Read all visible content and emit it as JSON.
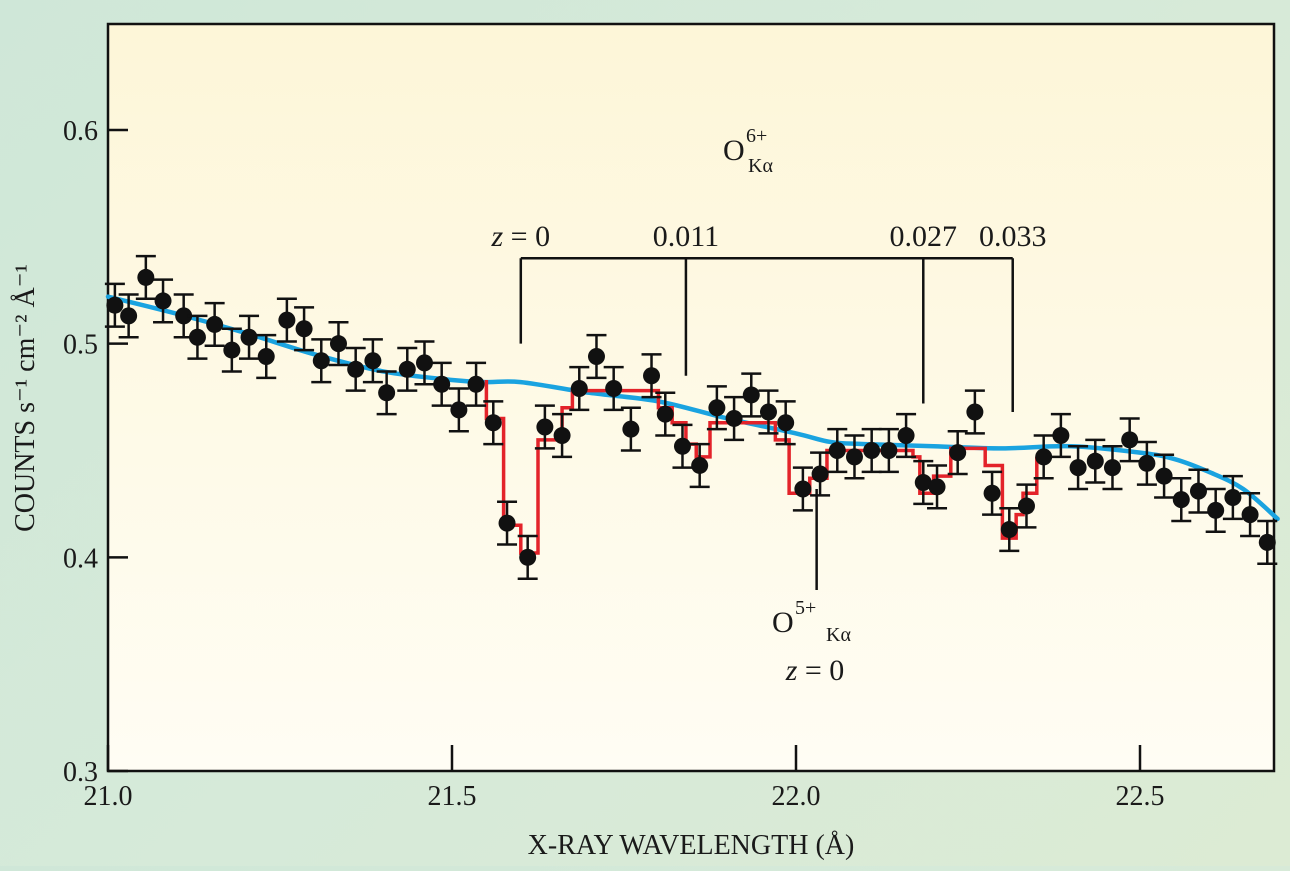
{
  "chart_data": {
    "type": "scatter",
    "xlabel": "X-RAY WAVELENGTH (Å)",
    "ylabel": "COUNTS s⁻¹ cm⁻² Å⁻¹",
    "xlim": [
      21.0,
      22.7
    ],
    "ylim": [
      0.3,
      0.65
    ],
    "x_ticks": [
      21.0,
      21.5,
      22.0,
      22.5
    ],
    "x_tick_labels": [
      "21.0",
      "21.5",
      "22.0",
      "22.5"
    ],
    "y_ticks": [
      0.3,
      0.4,
      0.5,
      0.6
    ],
    "y_tick_labels": [
      "0.3",
      "0.4",
      "0.5",
      "0.6"
    ],
    "colors": {
      "data": "#111111",
      "model_fit": "#e3232a",
      "continuum": "#1aa3e0"
    },
    "series": [
      {
        "name": "data",
        "points": [
          [
            21.01,
            0.518
          ],
          [
            21.03,
            0.513
          ],
          [
            21.055,
            0.531
          ],
          [
            21.08,
            0.52
          ],
          [
            21.11,
            0.513
          ],
          [
            21.13,
            0.503
          ],
          [
            21.155,
            0.509
          ],
          [
            21.18,
            0.497
          ],
          [
            21.205,
            0.503
          ],
          [
            21.23,
            0.494
          ],
          [
            21.26,
            0.511
          ],
          [
            21.285,
            0.507
          ],
          [
            21.31,
            0.492
          ],
          [
            21.335,
            0.5
          ],
          [
            21.36,
            0.488
          ],
          [
            21.385,
            0.492
          ],
          [
            21.405,
            0.477
          ],
          [
            21.435,
            0.488
          ],
          [
            21.46,
            0.491
          ],
          [
            21.485,
            0.481
          ],
          [
            21.51,
            0.469
          ],
          [
            21.535,
            0.481
          ],
          [
            21.56,
            0.463
          ],
          [
            21.58,
            0.416
          ],
          [
            21.61,
            0.4
          ],
          [
            21.635,
            0.461
          ],
          [
            21.66,
            0.457
          ],
          [
            21.685,
            0.479
          ],
          [
            21.71,
            0.494
          ],
          [
            21.735,
            0.479
          ],
          [
            21.76,
            0.46
          ],
          [
            21.79,
            0.485
          ],
          [
            21.81,
            0.467
          ],
          [
            21.835,
            0.452
          ],
          [
            21.86,
            0.443
          ],
          [
            21.885,
            0.47
          ],
          [
            21.91,
            0.465
          ],
          [
            21.935,
            0.476
          ],
          [
            21.96,
            0.468
          ],
          [
            21.985,
            0.463
          ],
          [
            22.01,
            0.432
          ],
          [
            22.035,
            0.439
          ],
          [
            22.06,
            0.45
          ],
          [
            22.085,
            0.447
          ],
          [
            22.11,
            0.45
          ],
          [
            22.135,
            0.45
          ],
          [
            22.16,
            0.457
          ],
          [
            22.185,
            0.435
          ],
          [
            22.205,
            0.433
          ],
          [
            22.235,
            0.449
          ],
          [
            22.26,
            0.468
          ],
          [
            22.285,
            0.43
          ],
          [
            22.31,
            0.413
          ],
          [
            22.335,
            0.424
          ],
          [
            22.36,
            0.447
          ],
          [
            22.385,
            0.457
          ],
          [
            22.41,
            0.442
          ],
          [
            22.435,
            0.445
          ],
          [
            22.46,
            0.442
          ],
          [
            22.485,
            0.455
          ],
          [
            22.51,
            0.444
          ],
          [
            22.535,
            0.438
          ],
          [
            22.56,
            0.427
          ],
          [
            22.585,
            0.431
          ],
          [
            22.61,
            0.422
          ],
          [
            22.635,
            0.428
          ],
          [
            22.66,
            0.42
          ],
          [
            22.685,
            0.407
          ]
        ],
        "error": 0.01
      },
      {
        "name": "model_fit",
        "type": "step",
        "points": [
          [
            21.55,
            0.483
          ],
          [
            21.55,
            0.465
          ],
          [
            21.575,
            0.465
          ],
          [
            21.575,
            0.415
          ],
          [
            21.6,
            0.415
          ],
          [
            21.6,
            0.402
          ],
          [
            21.625,
            0.402
          ],
          [
            21.625,
            0.455
          ],
          [
            21.66,
            0.455
          ],
          [
            21.66,
            0.47
          ],
          [
            21.675,
            0.47
          ],
          [
            21.675,
            0.478
          ],
          [
            21.7,
            0.478
          ],
          [
            21.8,
            0.478
          ],
          [
            21.8,
            0.47
          ],
          [
            21.82,
            0.47
          ],
          [
            21.82,
            0.463
          ],
          [
            21.84,
            0.463
          ],
          [
            21.84,
            0.453
          ],
          [
            21.855,
            0.453
          ],
          [
            21.855,
            0.447
          ],
          [
            21.875,
            0.447
          ],
          [
            21.875,
            0.463
          ],
          [
            21.97,
            0.463
          ],
          [
            21.97,
            0.455
          ],
          [
            21.99,
            0.455
          ],
          [
            21.99,
            0.43
          ],
          [
            22.02,
            0.43
          ],
          [
            22.02,
            0.437
          ],
          [
            22.045,
            0.437
          ],
          [
            22.045,
            0.45
          ],
          [
            22.17,
            0.45
          ],
          [
            22.17,
            0.447
          ],
          [
            22.18,
            0.447
          ],
          [
            22.18,
            0.43
          ],
          [
            22.2,
            0.43
          ],
          [
            22.2,
            0.438
          ],
          [
            22.225,
            0.438
          ],
          [
            22.225,
            0.451
          ],
          [
            22.275,
            0.451
          ],
          [
            22.275,
            0.443
          ],
          [
            22.3,
            0.443
          ],
          [
            22.3,
            0.409
          ],
          [
            22.32,
            0.409
          ],
          [
            22.32,
            0.42
          ],
          [
            22.33,
            0.42
          ],
          [
            22.33,
            0.43
          ],
          [
            22.35,
            0.43
          ],
          [
            22.35,
            0.447
          ]
        ]
      },
      {
        "name": "continuum",
        "type": "line",
        "points": [
          [
            21.0,
            0.522
          ],
          [
            21.1,
            0.514
          ],
          [
            21.2,
            0.505
          ],
          [
            21.3,
            0.495
          ],
          [
            21.4,
            0.487
          ],
          [
            21.5,
            0.483
          ],
          [
            21.55,
            0.482
          ],
          [
            21.6,
            0.482
          ],
          [
            21.7,
            0.477
          ],
          [
            21.8,
            0.473
          ],
          [
            21.9,
            0.465
          ],
          [
            22.0,
            0.458
          ],
          [
            22.05,
            0.454
          ],
          [
            22.1,
            0.453
          ],
          [
            22.2,
            0.452
          ],
          [
            22.3,
            0.451
          ],
          [
            22.4,
            0.452
          ],
          [
            22.5,
            0.449
          ],
          [
            22.55,
            0.446
          ],
          [
            22.6,
            0.44
          ],
          [
            22.65,
            0.432
          ],
          [
            22.7,
            0.418
          ]
        ]
      }
    ],
    "annotations": {
      "o6": {
        "ion": "O",
        "charge": "6+",
        "line": "Kα",
        "redshifts": [
          {
            "x": 21.6,
            "label": "z = 0"
          },
          {
            "x": 21.84,
            "label": "0.011"
          },
          {
            "x": 22.185,
            "label": "0.027"
          },
          {
            "x": 22.315,
            "label": "0.033"
          }
        ],
        "bracket_y": 0.54,
        "drop_y": [
          0.5,
          0.485,
          0.472,
          0.468
        ]
      },
      "o5": {
        "ion": "O",
        "charge": "5+",
        "line": "Kα",
        "x": 22.03,
        "redshift_label": "z = 0",
        "tick_y": [
          0.432,
          0.395
        ]
      }
    }
  }
}
